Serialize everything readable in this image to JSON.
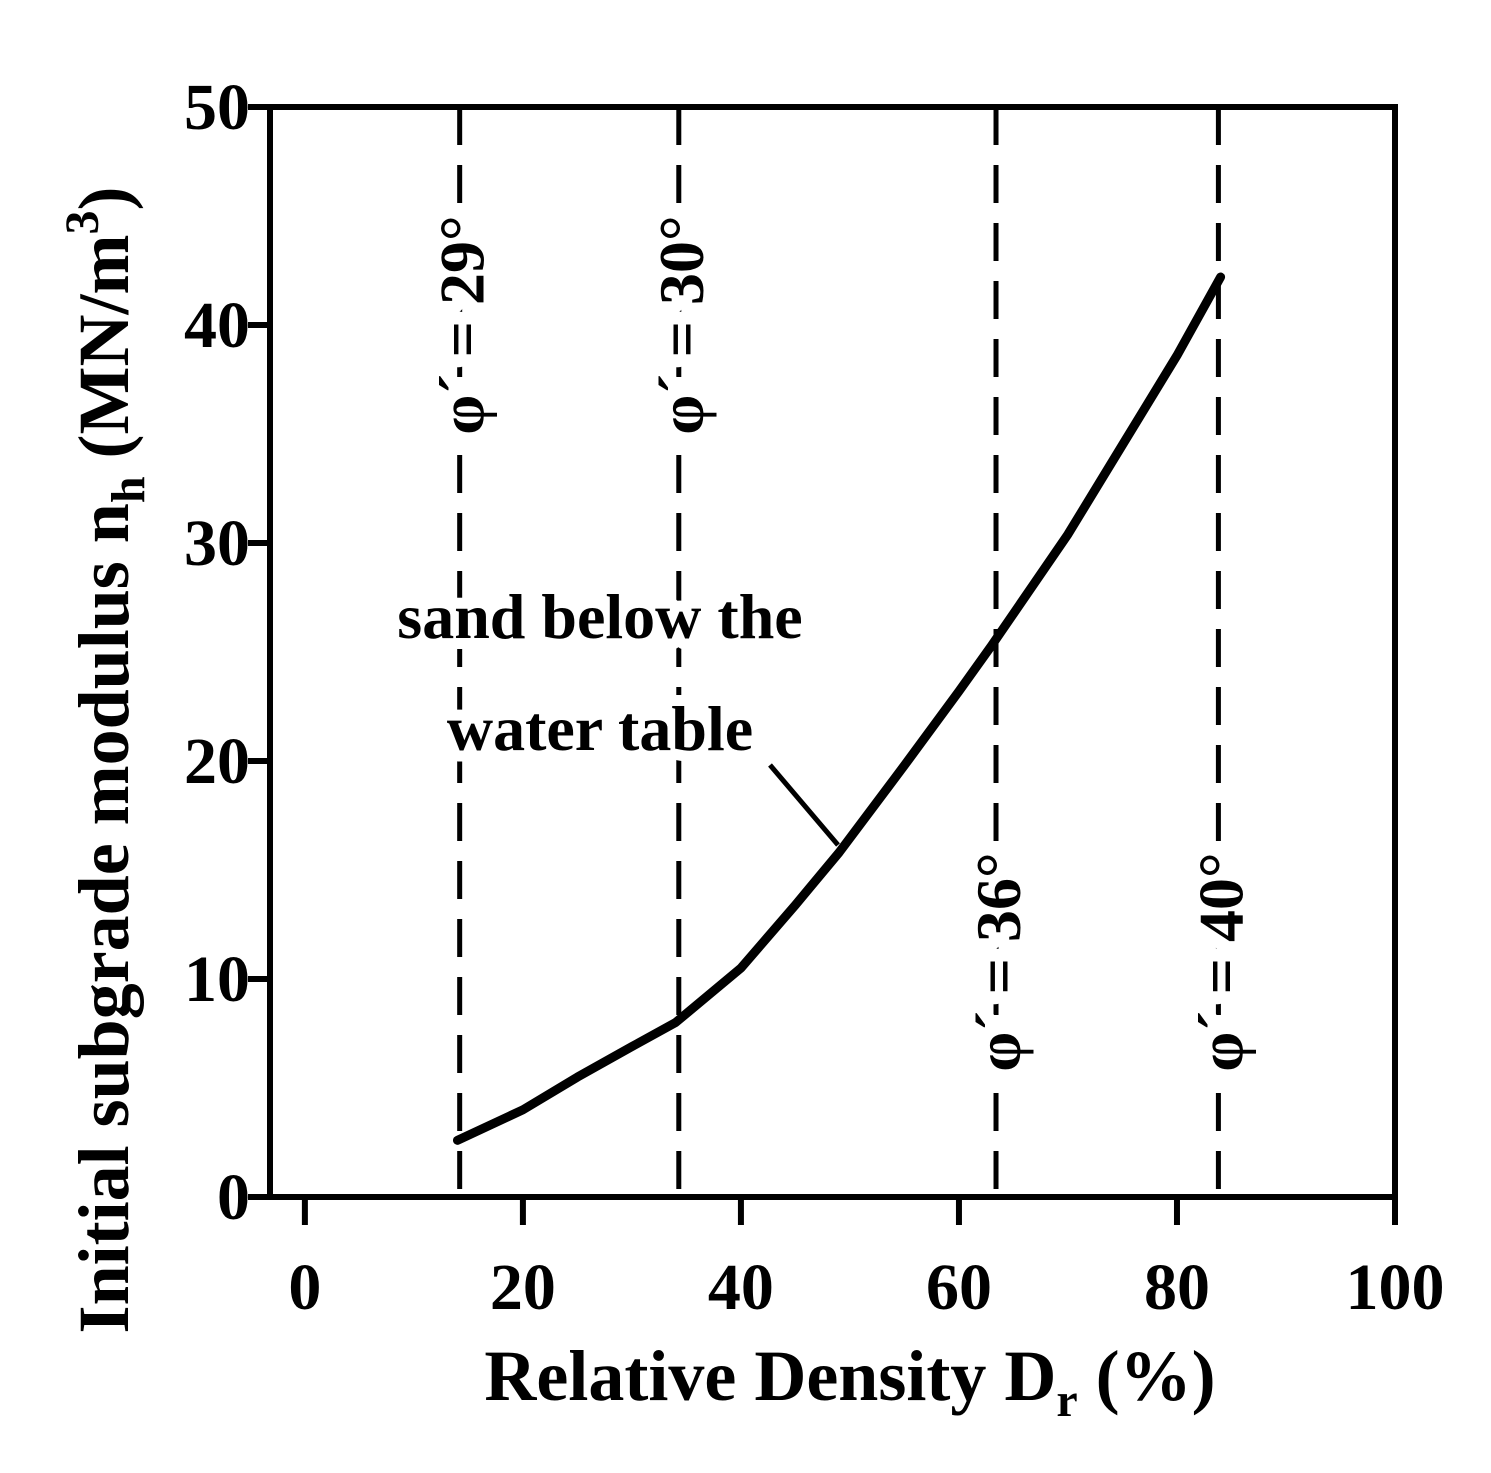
{
  "chart_data": {
    "type": "line",
    "x_label": {
      "text": "Relative Density D",
      "sub": "r",
      "rest": " (%)"
    },
    "y_label": {
      "text": "Initial subgrade modulus n",
      "sub": "h",
      "rest": " (MN/m",
      "sup": "3",
      "end": ")"
    },
    "x": [
      14,
      20,
      25,
      30,
      34,
      40,
      45,
      49,
      55,
      60,
      63,
      70,
      75,
      80,
      84
    ],
    "series": [
      {
        "color": "#000000",
        "values": [
          2.6,
          4.0,
          5.5,
          6.9,
          8.0,
          10.5,
          13.4,
          15.8,
          19.8,
          23.2,
          25.3,
          30.4,
          34.5,
          38.6,
          42.2
        ]
      }
    ],
    "xlim": [
      -3.2,
      100
    ],
    "ylim": [
      0,
      50
    ],
    "xticks": [
      0,
      20,
      40,
      60,
      80,
      100
    ],
    "yticks": [
      0,
      10,
      20,
      30,
      40,
      50
    ],
    "reference_lines": [
      {
        "x": 14.2,
        "label": "φ´ = 29°"
      },
      {
        "x": 34.3,
        "label": "φ´ = 30°"
      },
      {
        "x": 63.4,
        "label": "φ´ = 36°"
      },
      {
        "x": 83.8,
        "label": "φ´ = 40°"
      }
    ],
    "annotation": [
      "sand below the",
      "water table"
    ]
  }
}
